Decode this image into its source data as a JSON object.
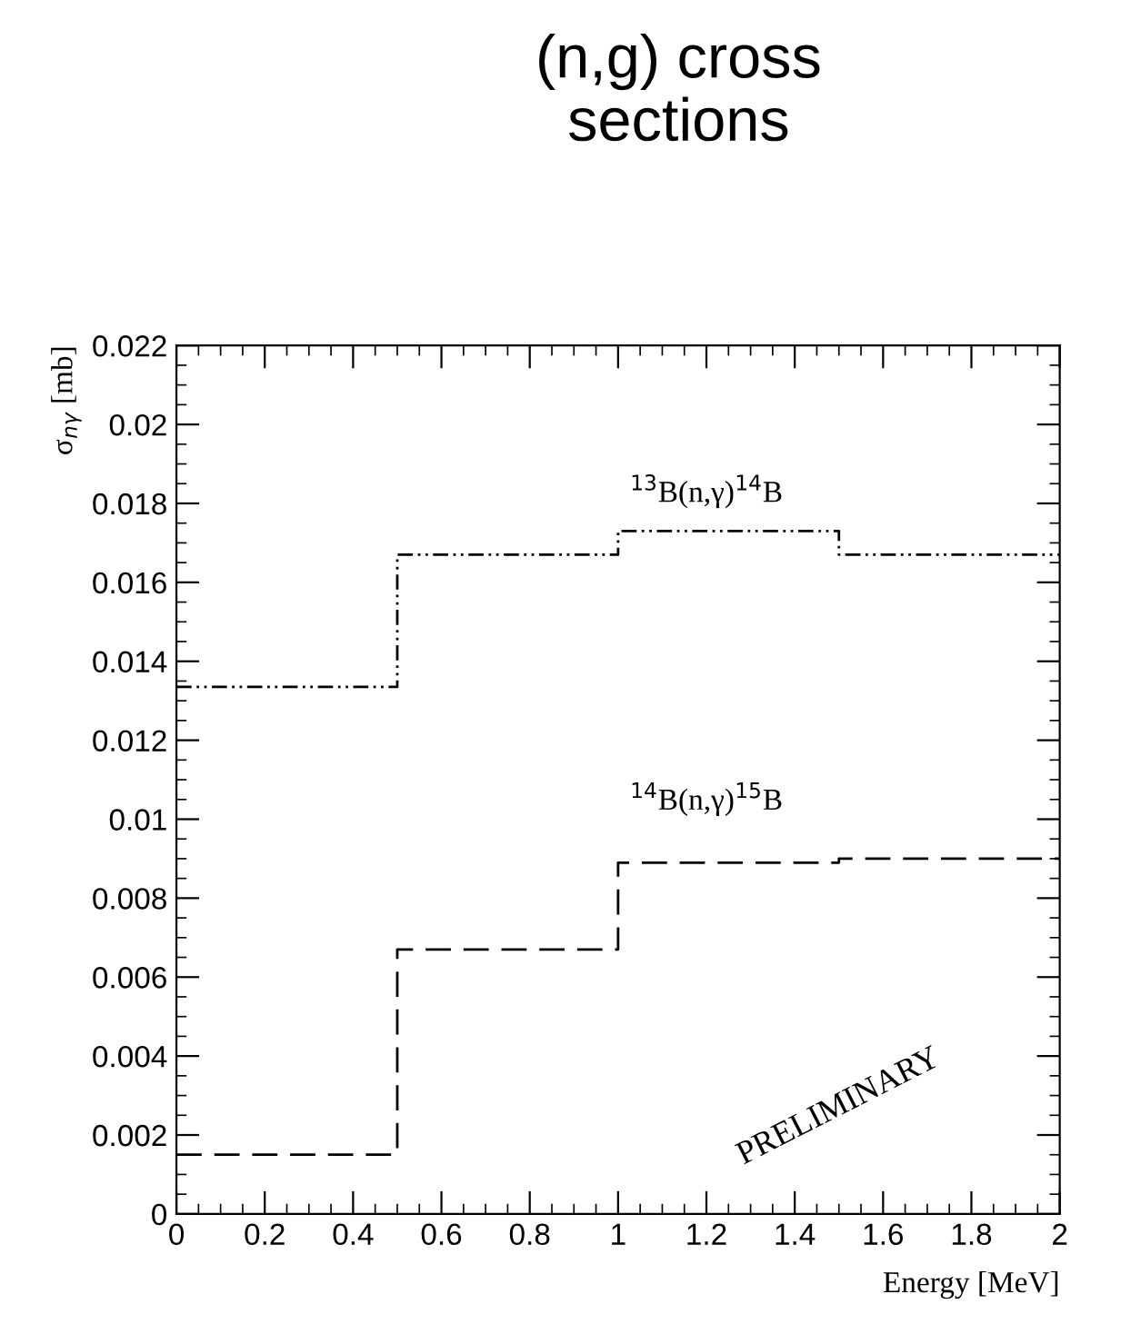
{
  "chart_data": {
    "type": "step",
    "title": "(n,g) cross\nsections",
    "xlabel": "Energy [MeV]",
    "ylabel": "σ$_{nγ}$ [mb]",
    "x": [
      0,
      0.5,
      1,
      1.5,
      2
    ],
    "series": [
      {
        "name": "$^{13}$B(n,γ)$^{14}$B",
        "color": "#000000",
        "line_style": "dashdot",
        "values": [
          0.01335,
          0.0167,
          0.0173,
          0.0167,
          0.0167
        ]
      },
      {
        "name": "$^{14}$B(n,γ)$^{15}$B",
        "color": "#000000",
        "line_style": "dashed",
        "values": [
          0.0015,
          0.0067,
          0.0089,
          0.009,
          0.009
        ]
      }
    ],
    "annotations": [
      "PRELIMINARY"
    ],
    "xlim": [
      0,
      2
    ],
    "ylim": [
      0,
      0.022
    ],
    "xticks": [
      0,
      0.2,
      0.4,
      0.6,
      0.8,
      1,
      1.2,
      1.4,
      1.6,
      1.8,
      2
    ],
    "yticks": [
      0,
      0.002,
      0.004,
      0.006,
      0.008,
      0.01,
      0.012,
      0.014,
      0.016,
      0.018,
      0.02,
      0.022
    ],
    "grid": false,
    "legend": false
  }
}
